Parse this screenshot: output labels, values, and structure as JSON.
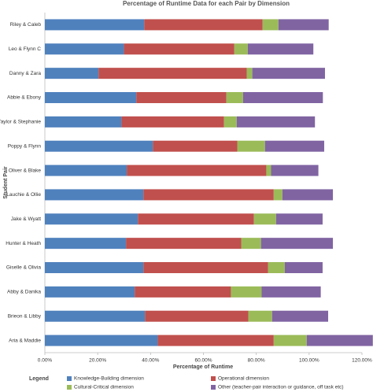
{
  "chart_data": {
    "type": "stacked-barh",
    "title": "Percentage of Runtime Data for each Pair by Dimension",
    "xlabel": "Percentage of Runtime",
    "ylabel": "Student Pair",
    "legend_title": "Legend",
    "categories": [
      "Riley & Caleb",
      "Leo & Flynn C",
      "Danny & Zara",
      "Abbie & Ebony",
      "Taylor & Stephanie",
      "Poppy & Flynn",
      "Oliver & Blake",
      "Lauchie & Ollie",
      "Jake & Wyatt",
      "Hunter & Heath",
      "Giselle & Olivia",
      "Abby & Danika",
      "Brieon & Libby",
      "Aria & Maddie"
    ],
    "series": [
      {
        "name": "Knowledge-Building dimension",
        "color": "#4f81bd",
        "values": [
          37.6,
          29.9,
          20.3,
          34.6,
          29.0,
          40.9,
          31.0,
          37.3,
          35.2,
          30.7,
          37.3,
          34.0,
          37.9,
          42.7
        ]
      },
      {
        "name": "Operational dimension",
        "color": "#c0504d",
        "values": [
          44.8,
          41.8,
          56.1,
          34.1,
          38.8,
          31.9,
          52.8,
          49.3,
          43.9,
          43.6,
          47.2,
          36.4,
          39.1,
          43.9
        ]
      },
      {
        "name": "Cultural-Critical dimension",
        "color": "#9bbb59",
        "values": [
          6.0,
          5.1,
          2.1,
          6.3,
          4.8,
          10.5,
          1.8,
          3.3,
          8.4,
          7.5,
          6.3,
          11.6,
          9.0,
          12.5
        ]
      },
      {
        "name": "Other (teacher-pair interaction or guidance, off task etc)",
        "color": "#8064a2",
        "values": [
          19.0,
          24.8,
          27.5,
          30.2,
          29.6,
          22.4,
          17.9,
          19.1,
          17.6,
          27.2,
          14.3,
          22.4,
          21.2,
          25.0
        ]
      }
    ],
    "xlim": [
      0,
      120
    ],
    "xticks": [
      {
        "value": 0,
        "label": "0.00%"
      },
      {
        "value": 20,
        "label": "20.00%"
      },
      {
        "value": 40,
        "label": "40.00%"
      },
      {
        "value": 60,
        "label": "60.00%"
      },
      {
        "value": 80,
        "label": "80.00%"
      },
      {
        "value": 100,
        "label": "100.00%"
      },
      {
        "value": 120,
        "label": "120.00%"
      }
    ],
    "grid": false
  }
}
